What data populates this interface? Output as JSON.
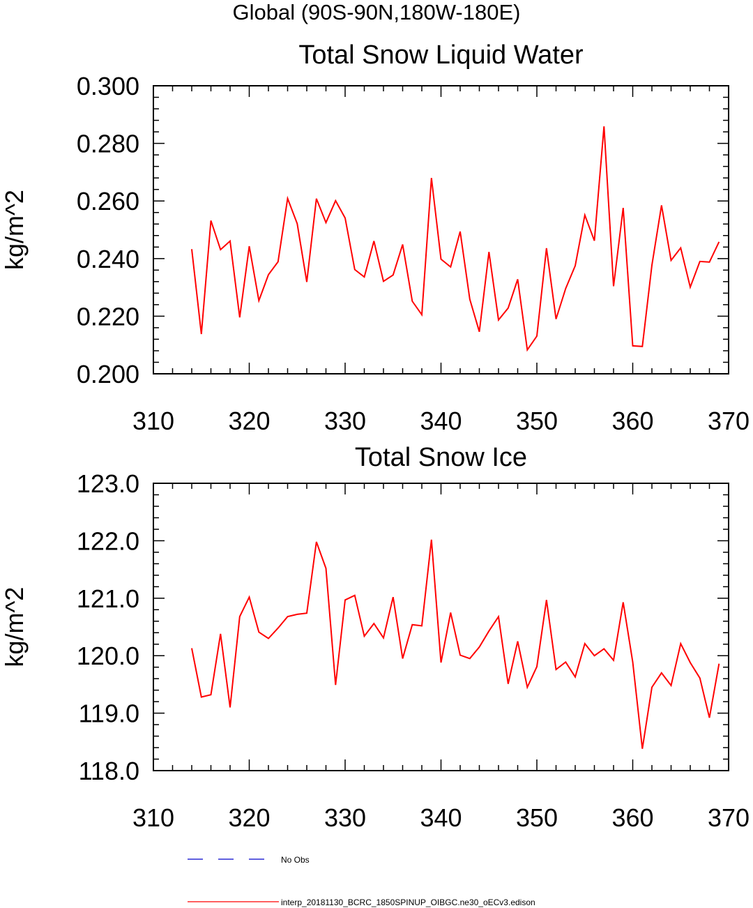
{
  "page_title": "Global (90S-90N,180W-180E)",
  "colors": {
    "model_line": "#ff0000",
    "obs_line": "#0000cc",
    "axis": "#000000"
  },
  "chart_data": [
    {
      "type": "line",
      "title": "Total Snow Liquid Water",
      "xlabel": "",
      "ylabel": "kg/m^2",
      "xlim": [
        310,
        370
      ],
      "ylim": [
        0.2,
        0.3
      ],
      "x_ticks": [
        310,
        320,
        330,
        340,
        350,
        360,
        370
      ],
      "x_tick_labels": [
        "310",
        "320",
        "330",
        "340",
        "350",
        "360",
        "370"
      ],
      "y_ticks": [
        0.2,
        0.22,
        0.24,
        0.26,
        0.28,
        0.3
      ],
      "y_tick_labels": [
        "0.200",
        "0.220",
        "0.240",
        "0.260",
        "0.280",
        "0.300"
      ],
      "grid": false,
      "series": [
        {
          "name": "interp_20181130_BCRC_1850SPINUP_OIBGC.ne30_oECv3.edison",
          "color": "#ff0000",
          "x": [
            314,
            315,
            316,
            317,
            318,
            319,
            320,
            321,
            322,
            323,
            324,
            325,
            326,
            327,
            328,
            329,
            330,
            331,
            332,
            333,
            334,
            335,
            336,
            337,
            338,
            339,
            340,
            341,
            342,
            343,
            344,
            345,
            346,
            347,
            348,
            349,
            350,
            351,
            352,
            353,
            354,
            355,
            356,
            357,
            358,
            359,
            360,
            361,
            362,
            363,
            364,
            365,
            366,
            367,
            368,
            369
          ],
          "y": [
            0.2433,
            0.2138,
            0.2532,
            0.2431,
            0.2461,
            0.2196,
            0.2443,
            0.2254,
            0.2344,
            0.2389,
            0.2609,
            0.2521,
            0.2319,
            0.2608,
            0.2525,
            0.2601,
            0.2541,
            0.2362,
            0.2336,
            0.2461,
            0.2321,
            0.2343,
            0.2449,
            0.2252,
            0.2205,
            0.268,
            0.2398,
            0.2371,
            0.2494,
            0.2259,
            0.2146,
            0.2423,
            0.2187,
            0.2228,
            0.2328,
            0.2083,
            0.2131,
            0.2436,
            0.219,
            0.2296,
            0.2375,
            0.2551,
            0.2462,
            0.2859,
            0.2304,
            0.2576,
            0.2097,
            0.2095,
            0.2377,
            0.2585,
            0.2394,
            0.2437,
            0.2301,
            0.239,
            0.2388,
            0.2458
          ]
        }
      ]
    },
    {
      "type": "line",
      "title": "Total Snow Ice",
      "xlabel": "",
      "ylabel": "kg/m^2",
      "xlim": [
        310,
        370
      ],
      "ylim": [
        118.0,
        123.0
      ],
      "x_ticks": [
        310,
        320,
        330,
        340,
        350,
        360,
        370
      ],
      "x_tick_labels": [
        "310",
        "320",
        "330",
        "340",
        "350",
        "360",
        "370"
      ],
      "y_ticks": [
        118,
        119,
        120,
        121,
        122,
        123
      ],
      "y_tick_labels": [
        "118.0",
        "119.0",
        "120.0",
        "121.0",
        "122.0",
        "123.0"
      ],
      "grid": false,
      "series": [
        {
          "name": "interp_20181130_BCRC_1850SPINUP_OIBGC.ne30_oECv3.edison",
          "color": "#ff0000",
          "x": [
            314,
            315,
            316,
            317,
            318,
            319,
            320,
            321,
            322,
            323,
            324,
            325,
            326,
            327,
            328,
            329,
            330,
            331,
            332,
            333,
            334,
            335,
            336,
            337,
            338,
            339,
            340,
            341,
            342,
            343,
            344,
            345,
            346,
            347,
            348,
            349,
            350,
            351,
            352,
            353,
            354,
            355,
            356,
            357,
            358,
            359,
            360,
            361,
            362,
            363,
            364,
            365,
            366,
            367,
            368,
            369
          ],
          "y": [
            120.13,
            119.28,
            119.32,
            120.38,
            119.1,
            120.68,
            121.02,
            120.41,
            120.3,
            120.48,
            120.68,
            120.72,
            120.74,
            121.98,
            121.52,
            119.49,
            120.97,
            121.05,
            120.34,
            120.56,
            120.31,
            121.02,
            119.95,
            120.54,
            120.52,
            122.02,
            119.88,
            120.75,
            120.01,
            119.95,
            120.15,
            120.43,
            120.68,
            119.51,
            120.25,
            119.45,
            119.81,
            120.97,
            119.76,
            119.89,
            119.63,
            120.21,
            120.0,
            120.12,
            119.92,
            120.93,
            119.89,
            118.38,
            119.45,
            119.7,
            119.48,
            120.21,
            119.88,
            119.61,
            118.92,
            119.86
          ]
        }
      ]
    }
  ],
  "legend": {
    "placement": "bottom-left",
    "entries": [
      {
        "label": "No Obs",
        "color": "#0000cc",
        "style": "dashed"
      },
      {
        "label": "interp_20181130_BCRC_1850SPINUP_OIBGC.ne30_oECv3.edison",
        "color": "#ff0000",
        "style": "solid"
      }
    ]
  }
}
